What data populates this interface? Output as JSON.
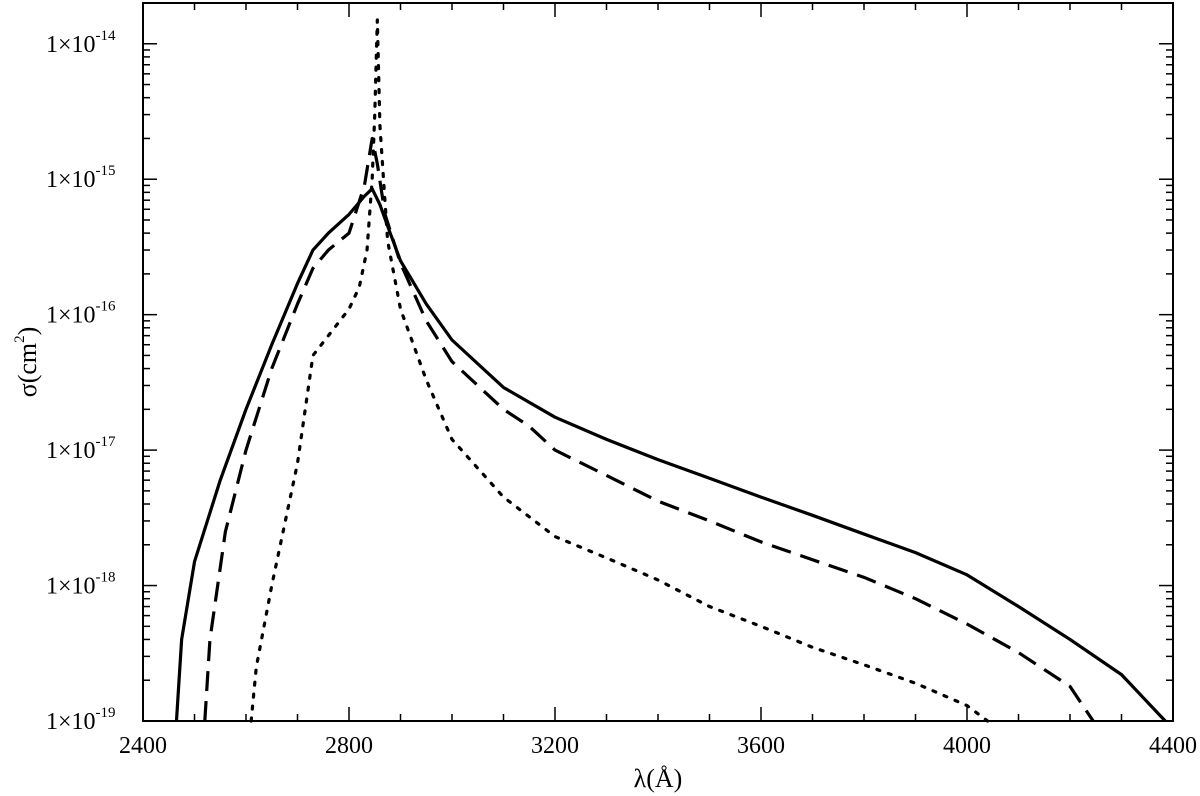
{
  "chart_data": {
    "type": "line",
    "title": "",
    "xlabel": "λ(Å)",
    "ylabel_main": "σ(cm",
    "ylabel_sup": "2",
    "ylabel_close": ")",
    "xlim": [
      2400,
      4400
    ],
    "ylim": [
      1e-19,
      2e-14
    ],
    "yscale": "log",
    "grid": false,
    "legend": "none",
    "x_ticks": [
      "2400",
      "2800",
      "3200",
      "3600",
      "4000",
      "4400"
    ],
    "y_ticks": [
      {
        "mantissa": "1×10",
        "exponent": "-19"
      },
      {
        "mantissa": "1×10",
        "exponent": "-18"
      },
      {
        "mantissa": "1×10",
        "exponent": "-17"
      },
      {
        "mantissa": "1×10",
        "exponent": "-16"
      },
      {
        "mantissa": "1×10",
        "exponent": "-15"
      },
      {
        "mantissa": "1×10",
        "exponent": "-14"
      }
    ],
    "series": [
      {
        "style": "solid",
        "x": [
          2465,
          2475,
          2500,
          2550,
          2600,
          2650,
          2700,
          2730,
          2760,
          2800,
          2830,
          2845,
          2860,
          2880,
          2900,
          2950,
          3000,
          3100,
          3200,
          3300,
          3400,
          3500,
          3600,
          3700,
          3800,
          3900,
          4000,
          4100,
          4200,
          4300,
          4385
        ],
        "y": [
          1e-19,
          4e-19,
          1.5e-18,
          6e-18,
          2e-17,
          6e-17,
          1.7e-16,
          3e-16,
          4e-16,
          5.5e-16,
          7.5e-16,
          8.5e-16,
          6.5e-16,
          4e-16,
          2.5e-16,
          1.2e-16,
          6.5e-17,
          2.9e-17,
          1.75e-17,
          1.2e-17,
          8.5e-18,
          6.2e-18,
          4.5e-18,
          3.3e-18,
          2.4e-18,
          1.75e-18,
          1.2e-18,
          7e-19,
          4e-19,
          2.2e-19,
          1e-19
        ]
      },
      {
        "style": "dashed",
        "x": [
          2520,
          2530,
          2560,
          2600,
          2650,
          2700,
          2730,
          2760,
          2800,
          2830,
          2845,
          2855,
          2870,
          2900,
          2950,
          3000,
          3100,
          3150,
          3200,
          3300,
          3400,
          3500,
          3600,
          3700,
          3800,
          3900,
          4000,
          4100,
          4200,
          4245
        ],
        "y": [
          1e-19,
          4e-19,
          2.5e-18,
          1e-17,
          4e-17,
          1.2e-16,
          2.2e-16,
          3e-16,
          4e-16,
          9e-16,
          2e-15,
          1.3e-15,
          5.5e-16,
          2.4e-16,
          9e-17,
          4.5e-17,
          2e-17,
          1.5e-17,
          1e-17,
          6.5e-18,
          4.2e-18,
          3e-18,
          2.1e-18,
          1.55e-18,
          1.15e-18,
          8e-19,
          5.2e-19,
          3.2e-19,
          1.8e-19,
          1e-19
        ]
      },
      {
        "style": "dotted",
        "x": [
          2610,
          2620,
          2650,
          2700,
          2730,
          2760,
          2800,
          2820,
          2835,
          2845,
          2850,
          2855,
          2860,
          2875,
          2900,
          2950,
          3000,
          3100,
          3200,
          3300,
          3400,
          3500,
          3600,
          3700,
          3800,
          3900,
          4000,
          4040
        ],
        "y": [
          1e-19,
          2.5e-19,
          1e-18,
          8e-18,
          5e-17,
          7e-17,
          1.1e-16,
          1.6e-16,
          3e-16,
          1e-15,
          3e-15,
          1.5e-14,
          2.5e-15,
          3.5e-16,
          1.1e-16,
          3.3e-17,
          1.2e-17,
          4.5e-18,
          2.3e-18,
          1.6e-18,
          1.1e-18,
          7e-19,
          5e-19,
          3.5e-19,
          2.6e-19,
          1.9e-19,
          1.3e-19,
          1e-19
        ]
      }
    ]
  }
}
